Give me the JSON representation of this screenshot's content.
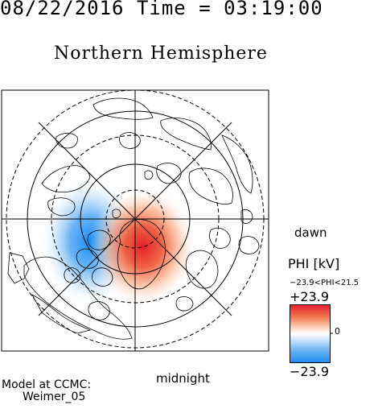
{
  "header": {
    "datetime": "08/22/2016 Time = 03:19:00"
  },
  "title": "Northern Hemisphere",
  "labels": {
    "dawn": "dawn",
    "midnight": "midnight"
  },
  "credit": {
    "line1": "Model at CCMC:",
    "line2": "Weimer_05"
  },
  "colorbar": {
    "title": "PHI [kV]",
    "range_text": "−23.9<PHI<21.5",
    "max_label": "+23.9",
    "min_label": "−23.9",
    "zero_label": "0",
    "max_color": "#e2202a",
    "min_color": "#1e8ef0",
    "mid_color": "#ffffff"
  },
  "chart_data": {
    "type": "heatmap",
    "variable": "PHI",
    "unit": "kV",
    "min": -23.9,
    "max": 21.5,
    "colorbar_limits": [
      -23.9,
      23.9
    ],
    "projection": "polar",
    "hemisphere": "Northern"
  }
}
